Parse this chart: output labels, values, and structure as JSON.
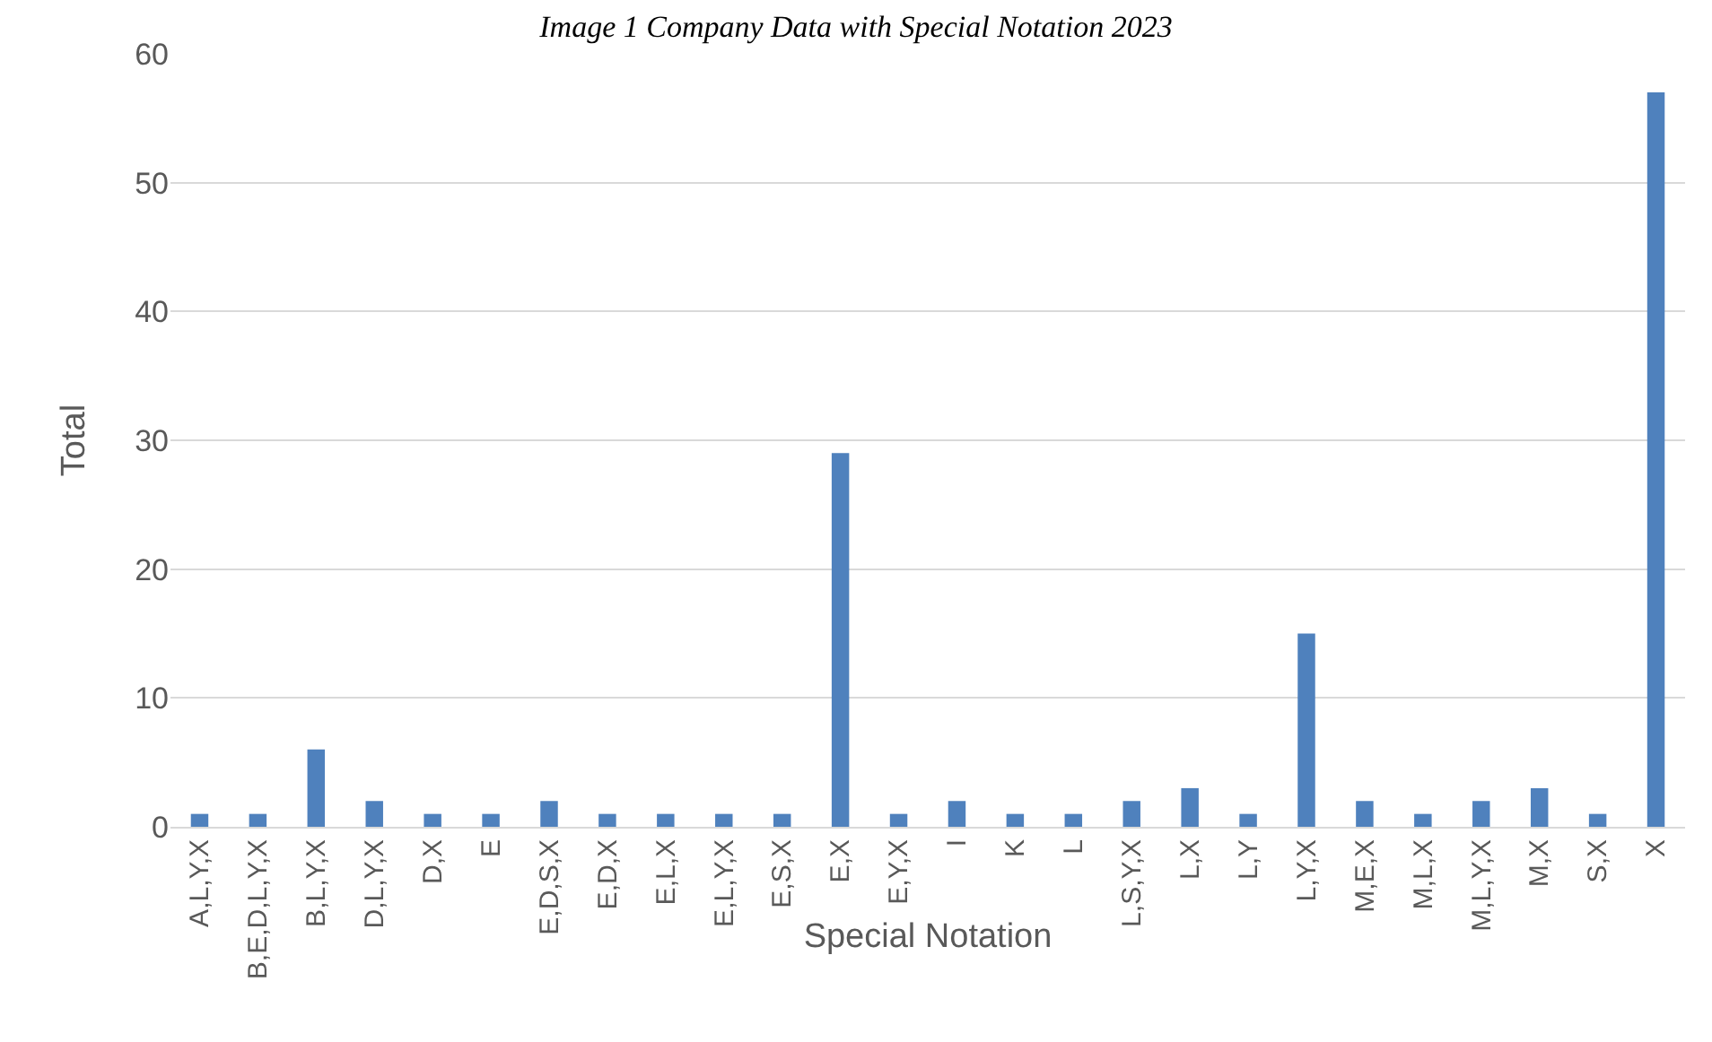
{
  "chart_data": {
    "type": "bar",
    "title": "Image 1 Company Data with Special Notation 2023",
    "xlabel": "Special Notation",
    "ylabel": "Total",
    "categories": [
      "A,L,Y,X",
      "B,E,D,L,Y,X",
      "B,L,Y,X",
      "D,L,Y,X",
      "D,X",
      "E",
      "E,D,S,X",
      "E,D,X",
      "E,L,X",
      "E,L,Y,X",
      "E,S,X",
      "E,X",
      "E,Y,X",
      "I",
      "K",
      "L",
      "L,S,Y,X",
      "L,X",
      "L,Y",
      "L,Y,X",
      "M,E,X",
      "M,L,X",
      "M,L,Y,X",
      "M,X",
      "S,X",
      "X"
    ],
    "values": [
      1,
      1,
      6,
      2,
      1,
      1,
      2,
      1,
      1,
      1,
      1,
      29,
      1,
      2,
      1,
      1,
      2,
      3,
      1,
      15,
      2,
      1,
      2,
      3,
      1,
      57
    ],
    "color": "#4f81bd",
    "ylim": [
      0,
      60
    ],
    "yticks": [
      0,
      10,
      20,
      30,
      40,
      50,
      60
    ],
    "grid": "y",
    "legend": false
  }
}
